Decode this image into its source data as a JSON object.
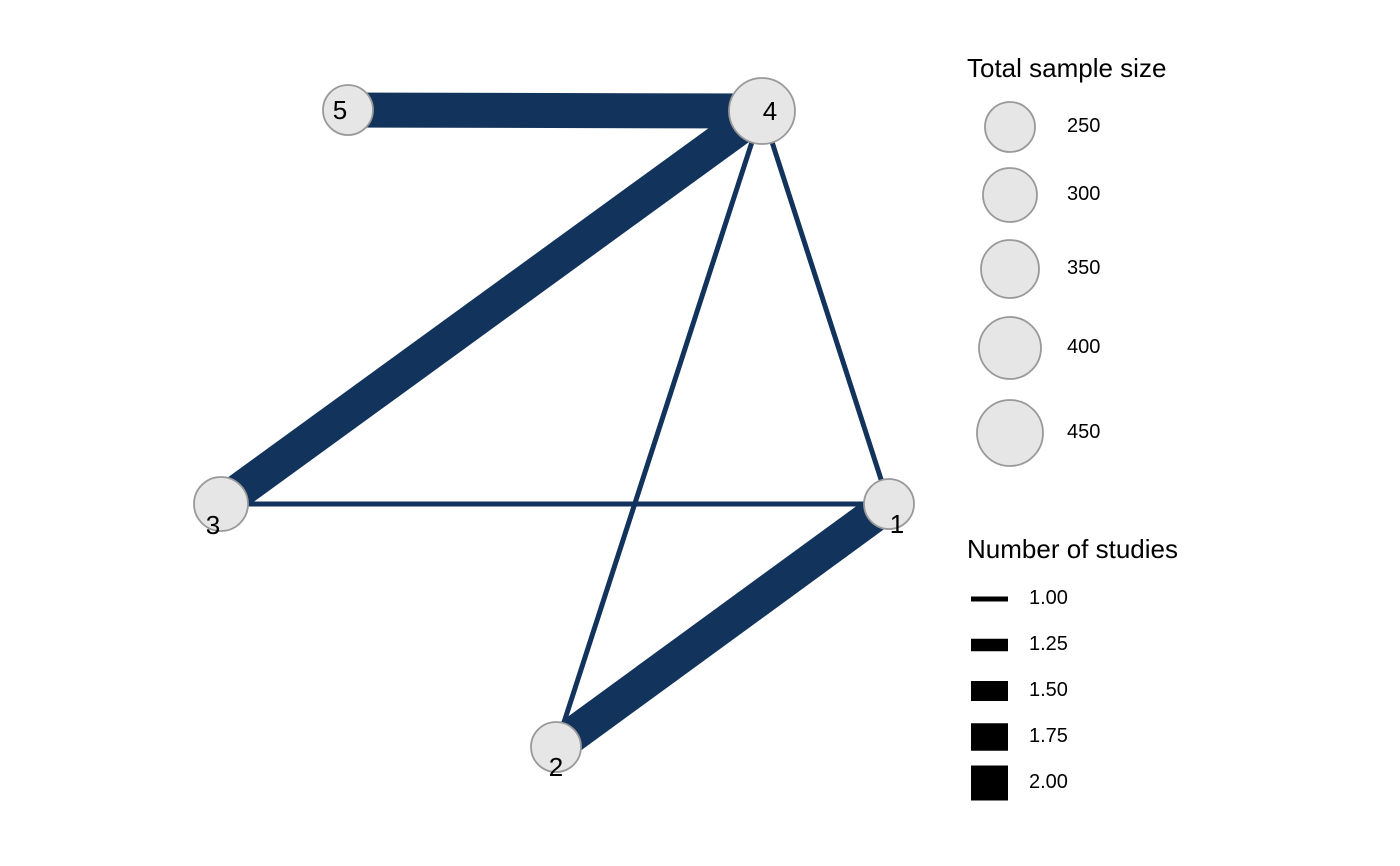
{
  "colors": {
    "edge": "#12335B",
    "node_fill": "#E6E6E6",
    "node_stroke": "#999999",
    "legend_bar": "#000000"
  },
  "network": {
    "nodes": [
      {
        "id": "1",
        "label": "1",
        "sample_size": 250
      },
      {
        "id": "2",
        "label": "2",
        "sample_size": 250
      },
      {
        "id": "3",
        "label": "3",
        "sample_size": 300
      },
      {
        "id": "4",
        "label": "4",
        "sample_size": 450
      },
      {
        "id": "5",
        "label": "5",
        "sample_size": 250
      }
    ],
    "edges": [
      {
        "from": "5",
        "to": "4",
        "studies": 2
      },
      {
        "from": "3",
        "to": "4",
        "studies": 2
      },
      {
        "from": "2",
        "to": "1",
        "studies": 2
      },
      {
        "from": "3",
        "to": "1",
        "studies": 1
      },
      {
        "from": "2",
        "to": "4",
        "studies": 1
      },
      {
        "from": "1",
        "to": "4",
        "studies": 1
      }
    ]
  },
  "legend": {
    "size": {
      "title": "Total sample size",
      "items": [
        {
          "value": 250,
          "label": "250"
        },
        {
          "value": 300,
          "label": "300"
        },
        {
          "value": 350,
          "label": "350"
        },
        {
          "value": 400,
          "label": "400"
        },
        {
          "value": 450,
          "label": "450"
        }
      ]
    },
    "studies": {
      "title": "Number of studies",
      "items": [
        {
          "value": 1.0,
          "label": "1.00"
        },
        {
          "value": 1.25,
          "label": "1.25"
        },
        {
          "value": 1.5,
          "label": "1.50"
        },
        {
          "value": 1.75,
          "label": "1.75"
        },
        {
          "value": 2.0,
          "label": "2.00"
        }
      ]
    }
  }
}
